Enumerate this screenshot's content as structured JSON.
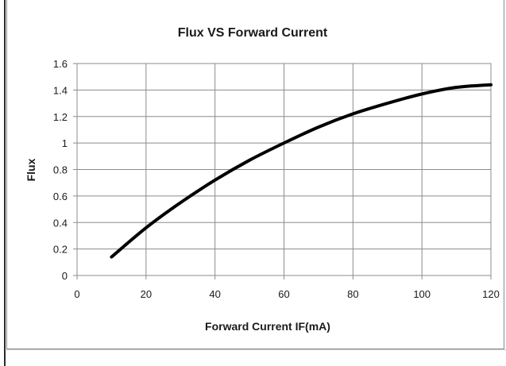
{
  "chart_data": {
    "type": "line",
    "title": "Flux VS Forward Current",
    "xlabel": "Forward Current IF(mA)",
    "ylabel": "Flux",
    "xlim": [
      0,
      120
    ],
    "ylim": [
      0,
      1.6
    ],
    "xticks": [
      "0",
      "20",
      "40",
      "60",
      "80",
      "100",
      "120"
    ],
    "yticks": [
      "0",
      "0.2",
      "0.4",
      "0.6",
      "0.8",
      "1",
      "1.2",
      "1.4",
      "1.6"
    ],
    "grid": true,
    "legend": "none",
    "line_color": "#000000",
    "series": [
      {
        "x": [
          10,
          20,
          30,
          40,
          50,
          60,
          70,
          80,
          90,
          100,
          110,
          120
        ],
        "y": [
          0.14,
          0.36,
          0.55,
          0.72,
          0.87,
          1.0,
          1.12,
          1.22,
          1.3,
          1.37,
          1.42,
          1.44
        ]
      }
    ]
  }
}
